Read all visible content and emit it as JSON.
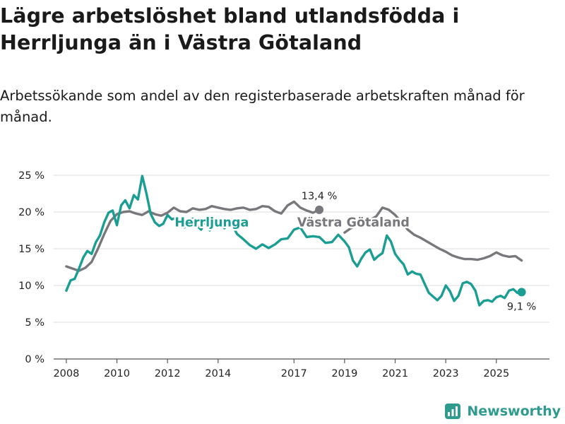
{
  "title": "Lägre arbetslöshet bland utlandsfödda i Herrljunga än i Västra Götaland",
  "subtitle": "Arbetssökande som andel av den registerbaserade arbetskraften månad för månad.",
  "brand": {
    "name": "Newsworthy",
    "logo_icon": "newsworthy-logo-icon"
  },
  "colors": {
    "herrljunga": "#1a9e93",
    "vastra_gotaland": "#77777c",
    "grid": "#dddddd",
    "axis": "#555555"
  },
  "chart_data": {
    "type": "line",
    "title": "Lägre arbetslöshet bland utlandsfödda i Herrljunga än i Västra Götaland",
    "subtitle": "Arbetssökande som andel av den registerbaserade arbetskraften månad för månad.",
    "xlabel": "",
    "ylabel": "",
    "x_ticks": [
      2008,
      2010,
      2012,
      2014,
      2017,
      2019,
      2021,
      2023,
      2025
    ],
    "x_tick_labels": [
      "2008",
      "2010",
      "2012",
      "2014",
      "2017",
      "2019",
      "2021",
      "2023",
      "2025"
    ],
    "y_ticks": [
      0,
      5,
      10,
      15,
      20,
      25
    ],
    "y_tick_labels": [
      "0 %",
      "5 %",
      "10 %",
      "15 %",
      "20 %",
      "25 %"
    ],
    "xlim": [
      2007.5,
      2027.1
    ],
    "ylim": [
      0,
      25
    ],
    "grid": true,
    "series": [
      {
        "name": "Västra Götaland",
        "color": "#77777c",
        "end_label": "13,4 %",
        "end_value": 13.4,
        "x": [
          2008.0,
          2008.25,
          2008.5,
          2008.75,
          2009.0,
          2009.25,
          2009.5,
          2009.75,
          2010.0,
          2010.25,
          2010.5,
          2010.75,
          2011.0,
          2011.25,
          2011.5,
          2011.75,
          2012.0,
          2012.25,
          2012.5,
          2012.75,
          2013.0,
          2013.25,
          2013.5,
          2013.75,
          2014.0,
          2014.25,
          2014.5,
          2014.75,
          2015.0,
          2015.25,
          2015.5,
          2015.75,
          2016.0,
          2016.25,
          2016.5,
          2016.75,
          2017.0,
          2017.25,
          2017.5,
          2017.75,
          2018.0
        ],
        "y": [
          12.6,
          12.3,
          12.0,
          12.4,
          13.2,
          15.0,
          17.0,
          18.8,
          19.7,
          20.0,
          20.1,
          19.8,
          19.6,
          20.1,
          19.7,
          19.5,
          19.9,
          20.6,
          20.1,
          20.0,
          20.5,
          20.3,
          20.4,
          20.8,
          20.6,
          20.4,
          20.3,
          20.5,
          20.6,
          20.3,
          20.4,
          20.8,
          20.7,
          20.1,
          19.8,
          20.9,
          21.4,
          20.6,
          20.2,
          19.9,
          20.3
        ]
      },
      {
        "name": "Västra Götaland",
        "color": "#77777c",
        "x": [
          2019.0,
          2019.25,
          2019.5,
          2019.75,
          2020.0,
          2020.25,
          2020.5,
          2020.75,
          2021.0,
          2021.25,
          2021.5,
          2021.75,
          2022.0,
          2022.25,
          2022.5,
          2022.75,
          2023.0,
          2023.25,
          2023.5,
          2023.75,
          2024.0,
          2024.25,
          2024.5,
          2024.75,
          2025.0,
          2025.25,
          2025.5,
          2025.75,
          2026.0
        ],
        "y": [
          17.2,
          17.8,
          18.2,
          18.6,
          18.9,
          19.4,
          20.6,
          20.3,
          19.6,
          18.6,
          17.6,
          16.9,
          16.5,
          16.0,
          15.5,
          15.0,
          14.6,
          14.1,
          13.8,
          13.6,
          13.6,
          13.5,
          13.7,
          14.0,
          14.5,
          14.1,
          13.9,
          14.0,
          13.4
        ]
      },
      {
        "name": "Herrljunga",
        "color": "#1a9e93",
        "end_label": "9,1 %",
        "end_value": 9.1,
        "x": [
          2008.0,
          2008.17,
          2008.33,
          2008.5,
          2008.67,
          2008.83,
          2009.0,
          2009.17,
          2009.33,
          2009.5,
          2009.67,
          2009.83,
          2010.0,
          2010.17,
          2010.33,
          2010.5,
          2010.67,
          2010.83,
          2011.0,
          2011.17,
          2011.33,
          2011.5,
          2011.67,
          2011.83,
          2012.0,
          2012.17,
          2012.33,
          2012.5,
          2012.67,
          2012.83,
          2013.0,
          2013.17,
          2013.33,
          2013.5,
          2013.67,
          2013.83,
          2014.0,
          2014.25,
          2014.5,
          2014.75,
          2015.0,
          2015.25,
          2015.5,
          2015.75,
          2016.0,
          2016.25,
          2016.5,
          2016.75,
          2017.0,
          2017.25,
          2017.5,
          2017.75,
          2018.0,
          2018.25,
          2018.5,
          2018.75,
          2019.0,
          2019.17,
          2019.33,
          2019.5,
          2019.67,
          2019.83,
          2020.0,
          2020.17,
          2020.33,
          2020.5,
          2020.67,
          2020.83,
          2021.0,
          2021.17,
          2021.33,
          2021.5,
          2021.67,
          2021.83,
          2022.0,
          2022.17,
          2022.33,
          2022.5,
          2022.67,
          2022.83,
          2023.0,
          2023.17,
          2023.33,
          2023.5,
          2023.67,
          2023.83,
          2024.0,
          2024.17,
          2024.33,
          2024.5,
          2024.67,
          2024.83,
          2025.0,
          2025.17,
          2025.33,
          2025.5,
          2025.67,
          2025.83,
          2026.0
        ],
        "y": [
          9.3,
          10.7,
          10.9,
          12.3,
          13.8,
          14.7,
          14.3,
          15.9,
          16.8,
          18.6,
          19.9,
          20.2,
          18.2,
          20.9,
          21.6,
          20.5,
          22.3,
          21.7,
          24.9,
          22.5,
          19.8,
          18.6,
          18.1,
          18.4,
          19.6,
          19.0,
          19.2,
          18.8,
          17.9,
          18.9,
          19.1,
          18.1,
          17.6,
          18.9,
          17.5,
          18.0,
          18.9,
          17.8,
          18.6,
          17.0,
          16.3,
          15.5,
          15.0,
          15.6,
          15.1,
          15.6,
          16.3,
          16.4,
          17.6,
          17.9,
          16.6,
          16.7,
          16.6,
          15.8,
          15.9,
          16.9,
          16.0,
          15.2,
          13.4,
          12.6,
          13.7,
          14.5,
          14.9,
          13.5,
          14.0,
          14.4,
          16.8,
          16.0,
          14.3,
          13.5,
          12.9,
          11.5,
          11.9,
          11.6,
          11.5,
          10.2,
          9.0,
          8.5,
          8.0,
          8.6,
          10.0,
          9.2,
          7.9,
          8.6,
          10.3,
          10.5,
          10.2,
          9.3,
          7.3,
          7.9,
          8.0,
          7.8,
          8.4,
          8.6,
          8.3,
          9.3,
          9.5,
          9.0,
          9.1
        ]
      }
    ],
    "series_labels": [
      "Herrljunga",
      "Västra Götaland"
    ]
  }
}
